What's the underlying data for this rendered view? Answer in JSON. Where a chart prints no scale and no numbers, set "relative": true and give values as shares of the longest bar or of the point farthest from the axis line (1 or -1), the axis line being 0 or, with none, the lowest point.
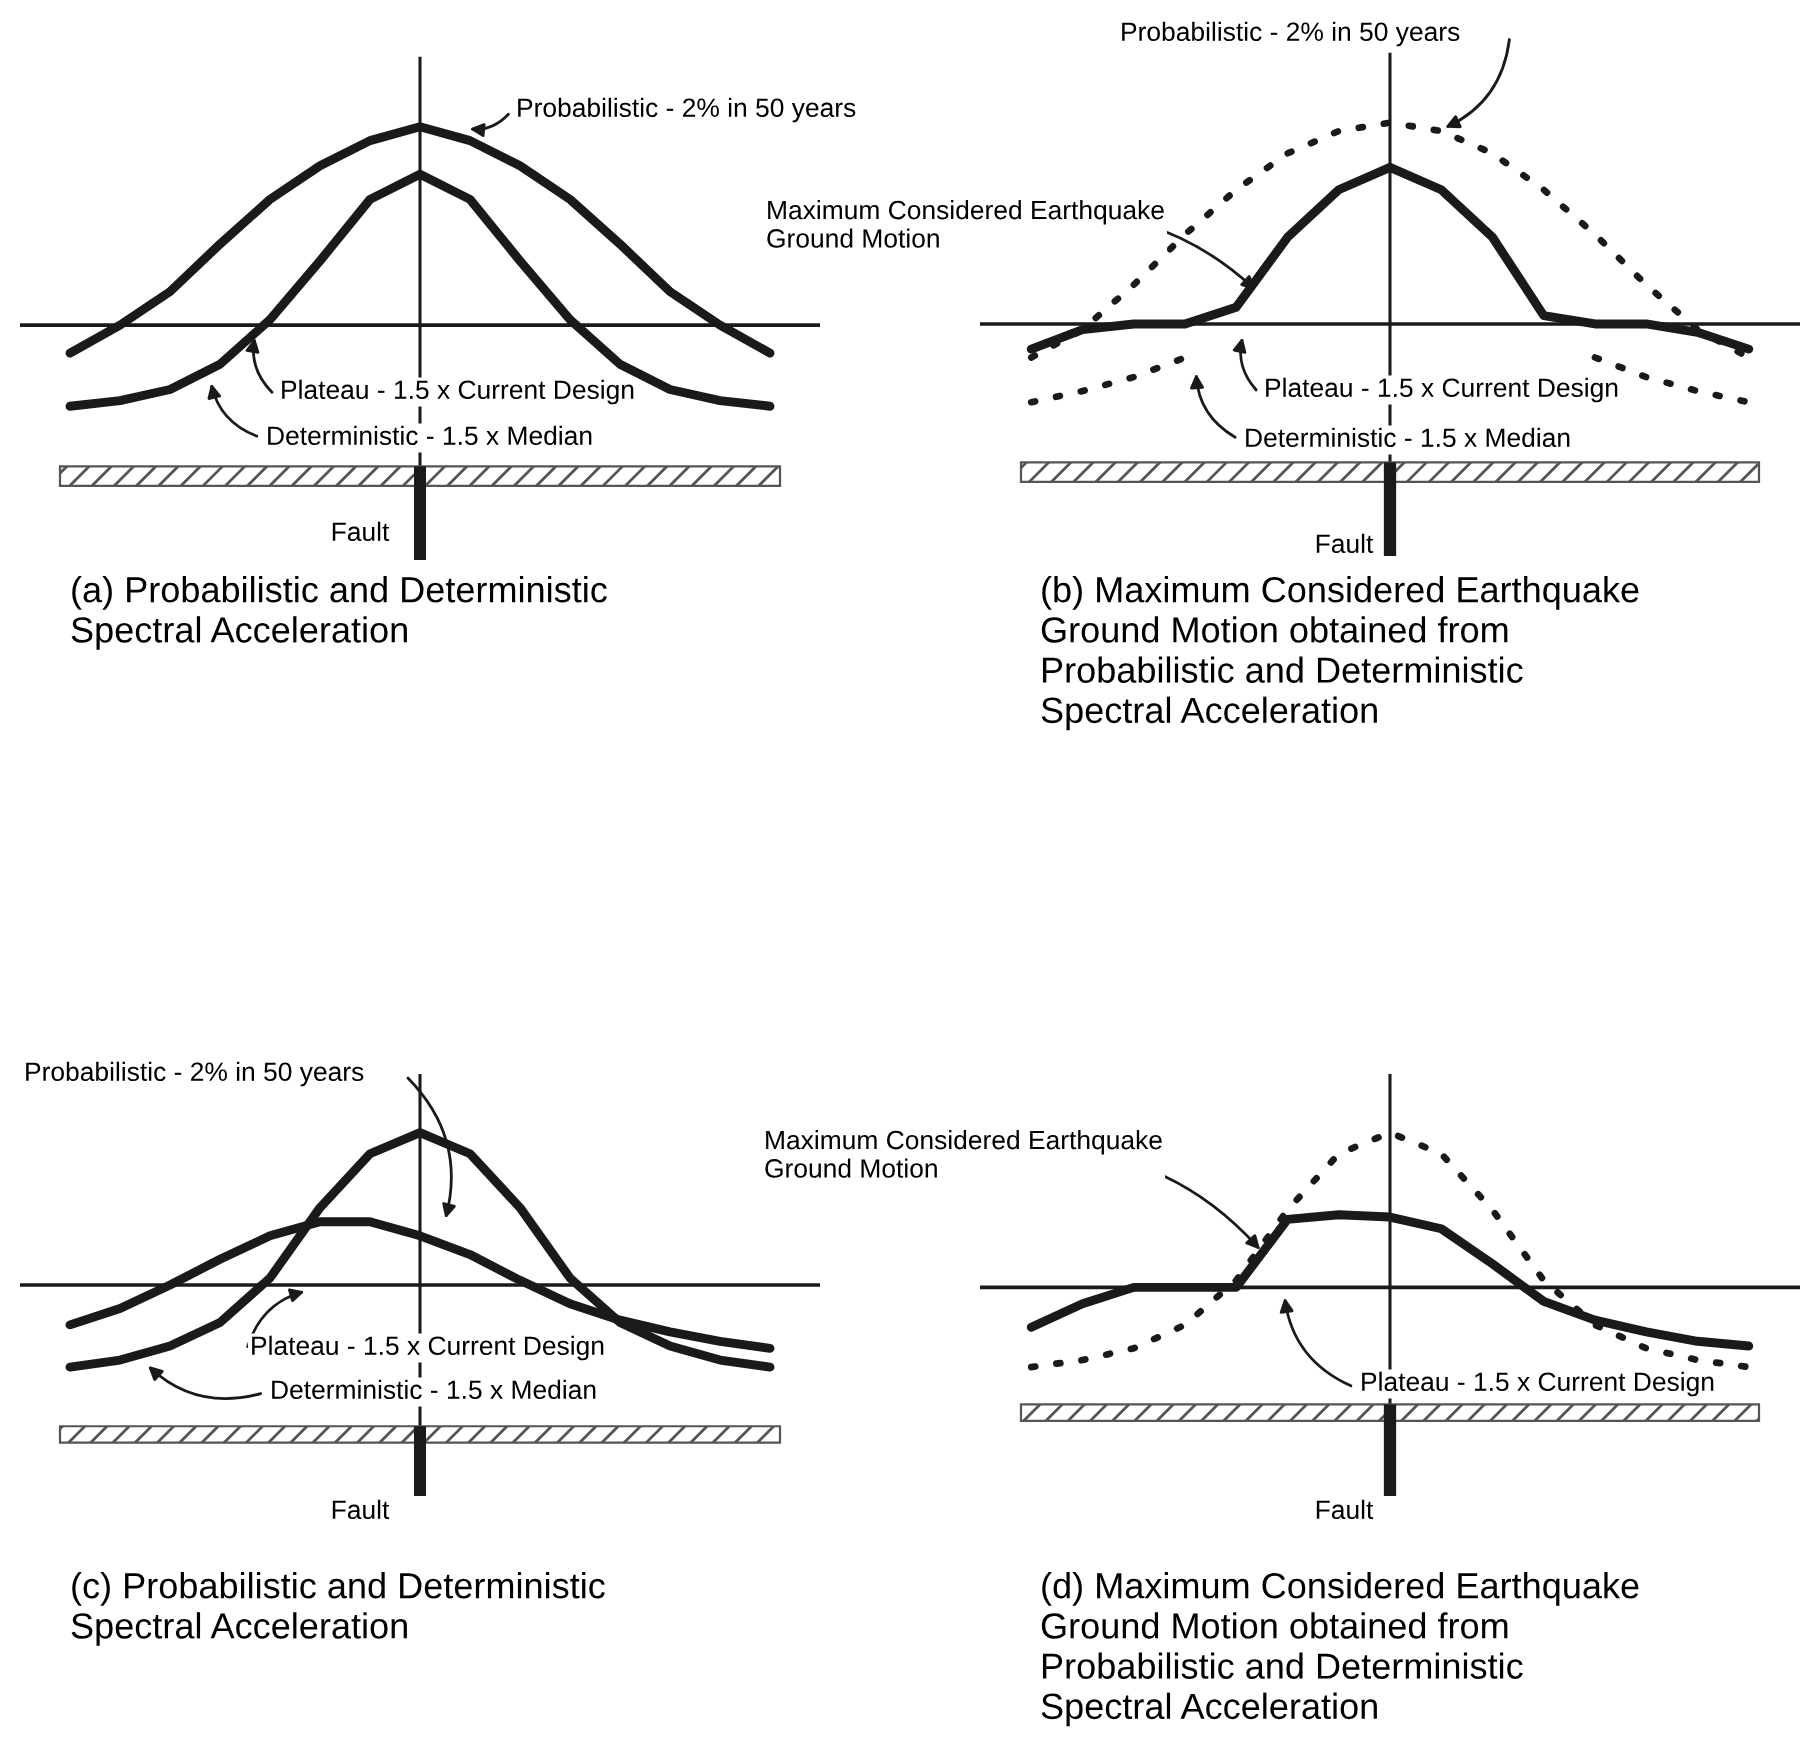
{
  "chart_data": [
    {
      "type": "line",
      "relative": true,
      "title": "(a) Probabilistic and Deterministic\nSpectral Acceleration",
      "categories": [
        null,
        null,
        null,
        null,
        null,
        null,
        null,
        null,
        null,
        null,
        null,
        null,
        null,
        null,
        null
      ],
      "series": [
        {
          "color": "#1a1a1a",
          "line_style": "solid",
          "values": [
            0.19,
            0.29,
            0.41,
            0.58,
            0.74,
            0.86,
            0.95,
            1,
            0.95,
            0.86,
            0.74,
            0.58,
            0.41,
            0.29,
            0.19
          ]
        },
        {
          "color": "#1a1a1a",
          "line_style": "solid",
          "values": [
            0,
            0.02,
            0.06,
            0.15,
            0.31,
            0.52,
            0.74,
            0.83,
            0.74,
            0.52,
            0.31,
            0.15,
            0.06,
            0.02,
            0
          ]
        }
      ],
      "ref_lines": [
        {
          "axis": "y",
          "value": 0.29,
          "label": "Plateau - 1.5 x Current Design"
        }
      ],
      "annotations": [
        "Probabilistic - 2% in 50 years",
        "Deterministic - 1.5 x Median",
        "Fault"
      ]
    },
    {
      "type": "line",
      "relative": true,
      "title": "(b) Maximum Considered Earthquake\nGround Motion obtained from\nProbabilistic and Deterministic\nSpectral Acceleration",
      "categories": [
        null,
        null,
        null,
        null,
        null,
        null,
        null,
        null,
        null,
        null,
        null,
        null,
        null,
        null,
        null
      ],
      "series": [
        {
          "color": "#1a1a1a",
          "line_style": "dotted",
          "values": [
            0.16,
            0.26,
            0.42,
            0.6,
            0.76,
            0.89,
            0.97,
            1,
            0.97,
            0.89,
            0.76,
            0.6,
            0.42,
            0.26,
            0.16
          ]
        },
        {
          "color": "#1a1a1a",
          "line_style": "dotted",
          "values": [
            0,
            0.04,
            0.09,
            0.16,
            null,
            null,
            null,
            null,
            null,
            null,
            null,
            0.16,
            0.09,
            0.04,
            0
          ]
        },
        {
          "color": "#1a1a1a",
          "line_style": "solid",
          "values": [
            0.19,
            0.26,
            0.28,
            0.28,
            0.34,
            0.59,
            0.76,
            0.84,
            0.76,
            0.59,
            0.31,
            0.28,
            0.28,
            0.25,
            0.19
          ]
        }
      ],
      "ref_lines": [
        {
          "axis": "y",
          "value": 0.28,
          "label": "Plateau - 1.5 x Current Design"
        }
      ],
      "annotations": [
        "Probabilistic - 2% in 50 years",
        "Maximum Considered Earthquake\nGround Motion",
        "Deterministic - 1.5 x Median",
        "Fault"
      ]
    },
    {
      "type": "line",
      "relative": true,
      "title": "(c) Probabilistic and Deterministic\nSpectral Acceleration",
      "categories": [
        null,
        null,
        null,
        null,
        null,
        null,
        null,
        null,
        null,
        null,
        null,
        null,
        null,
        null,
        null
      ],
      "series": [
        {
          "color": "#1a1a1a",
          "line_style": "solid",
          "values": [
            0.18,
            0.25,
            0.35,
            0.46,
            0.56,
            0.62,
            0.62,
            0.56,
            0.48,
            0.37,
            0.27,
            0.2,
            0.15,
            0.11,
            0.08
          ]
        },
        {
          "color": "#1a1a1a",
          "line_style": "solid",
          "values": [
            0,
            0.03,
            0.09,
            0.19,
            0.38,
            0.68,
            0.91,
            1,
            0.91,
            0.68,
            0.38,
            0.19,
            0.09,
            0.03,
            0
          ]
        }
      ],
      "ref_lines": [
        {
          "axis": "y",
          "value": 0.35,
          "label": "Plateau - 1.5 x Current Design"
        }
      ],
      "annotations": [
        "Probabilistic - 2% in 50 years",
        "Deterministic - 1.5 x Median",
        "Fault"
      ]
    },
    {
      "type": "line",
      "relative": true,
      "title": "(d) Maximum Considered Earthquake\nGround Motion obtained from\nProbabilistic and Deterministic\nSpectral Acceleration",
      "categories": [
        null,
        null,
        null,
        null,
        null,
        null,
        null,
        null,
        null,
        null,
        null,
        null,
        null,
        null,
        null
      ],
      "series": [
        {
          "color": "#1a1a1a",
          "line_style": "dotted",
          "values": [
            0,
            0.03,
            0.08,
            0.18,
            0.37,
            0.67,
            0.91,
            1,
            0.91,
            0.67,
            0.37,
            0.18,
            0.08,
            0.03,
            0
          ]
        },
        {
          "color": "#1a1a1a",
          "line_style": "solid",
          "values": [
            0.17,
            0.27,
            0.34,
            0.34,
            0.34,
            0.63,
            0.65,
            0.64,
            0.59,
            0.44,
            0.28,
            0.2,
            0.15,
            0.11,
            0.09
          ]
        }
      ],
      "ref_lines": [
        {
          "axis": "y",
          "value": 0.34,
          "label": "Plateau - 1.5 x Current Design"
        }
      ],
      "annotations": [
        "Maximum Considered Earthquake\nGround Motion",
        "Fault"
      ]
    }
  ]
}
